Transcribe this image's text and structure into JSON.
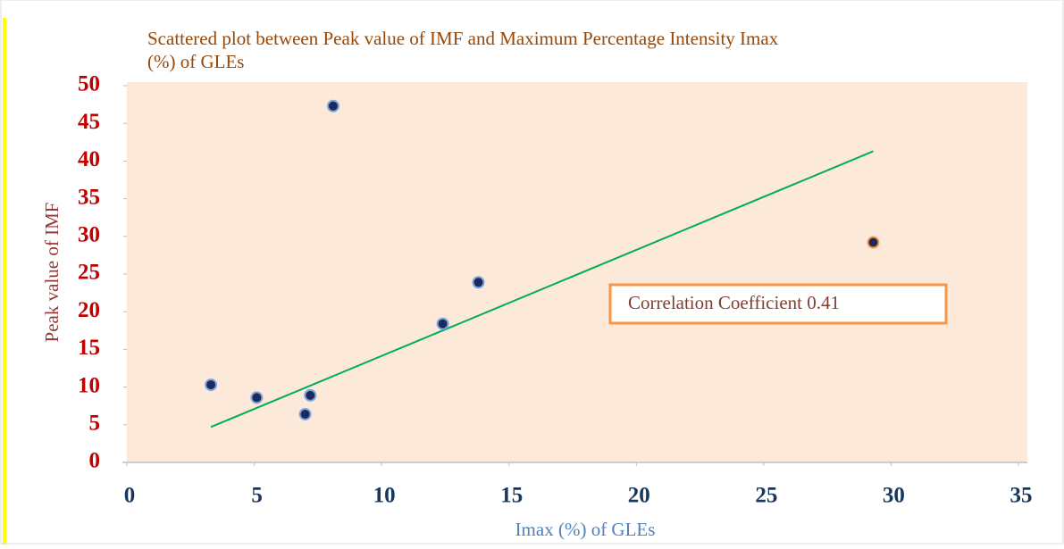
{
  "chart_data": {
    "type": "scatter",
    "title": [
      "Scattered plot between Peak value of  IMF and Maximum Percentage Intensity Imax",
      "(%) of GLEs"
    ],
    "xlabel": "Imax (%) of GLEs",
    "ylabel": "Peak value of  IMF",
    "series": [
      {
        "color": "#1f2a5c",
        "x": [
          3.3,
          5.1,
          7.0,
          7.2,
          8.1,
          12.4,
          13.8,
          29.3
        ],
        "values": [
          10.3,
          8.6,
          6.4,
          8.9,
          47.3,
          18.4,
          23.9,
          29.2
        ]
      }
    ],
    "trendline": {
      "color": "#00b050",
      "x": [
        3.3,
        29.3
      ],
      "values": [
        4.7,
        41.3
      ]
    },
    "annotation": "Correlation Coefficient 0.41",
    "xlim": [
      0,
      35
    ],
    "xticks": [
      0,
      5,
      10,
      15,
      20,
      25,
      30,
      35
    ],
    "ylim": [
      0,
      50
    ],
    "yticks": [
      0,
      5,
      10,
      15,
      20,
      25,
      30,
      35,
      40,
      45,
      50
    ]
  }
}
